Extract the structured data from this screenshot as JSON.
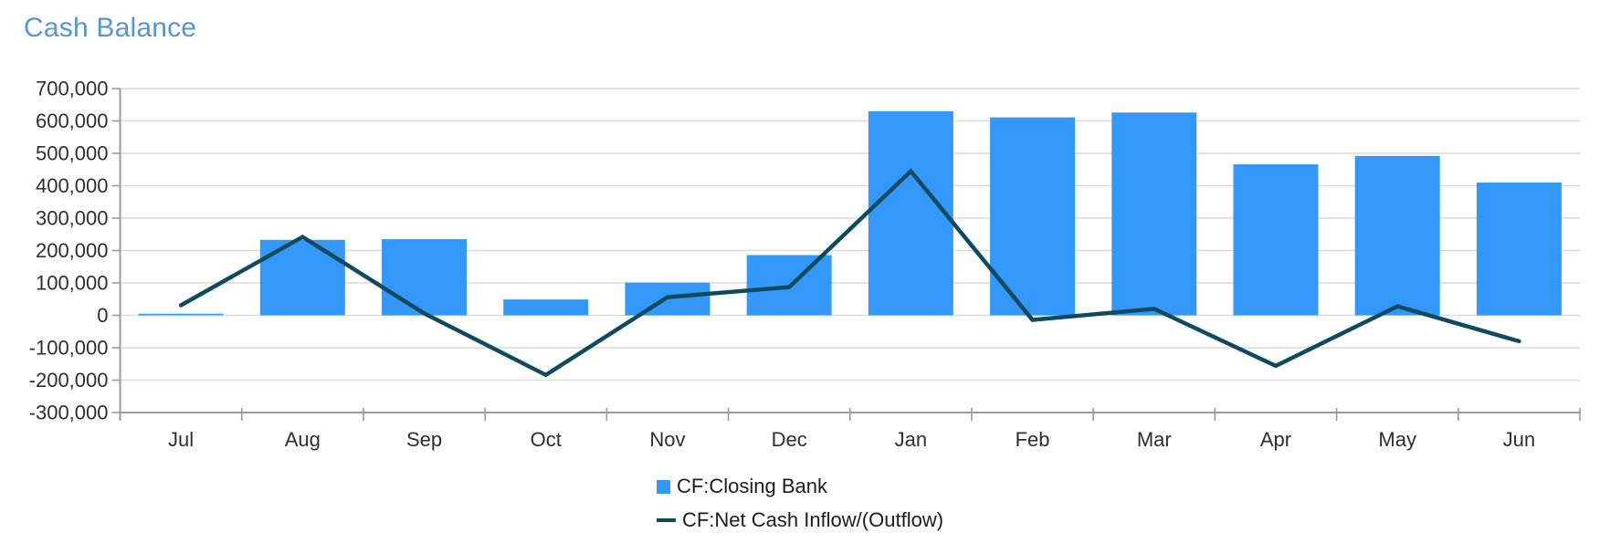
{
  "title": {
    "text": "Cash Balance",
    "color": "#5596D2"
  },
  "colors": {
    "bar": "#3498FA",
    "line": "#0F4B5C",
    "grid": "#DADADA",
    "axis": "#9B9B9B",
    "tick_text": "#2E2E2E"
  },
  "legend": {
    "items": [
      {
        "label": "CF:Closing Bank",
        "marker": "square",
        "color": "#3498FA"
      },
      {
        "label": "CF:Net Cash Inflow/(Outflow)",
        "marker": "line",
        "color": "#0F4B5C"
      }
    ],
    "position": "bottom"
  },
  "chart_data": {
    "type": "combo",
    "title": "Cash Balance",
    "categories": [
      "Jul",
      "Aug",
      "Sep",
      "Oct",
      "Nov",
      "Dec",
      "Jan",
      "Feb",
      "Mar",
      "Apr",
      "May",
      "Jun"
    ],
    "series": [
      {
        "name": "CF:Closing Bank",
        "type": "bar",
        "color": "#3498FA",
        "values": [
          5000,
          233000,
          235000,
          49000,
          101000,
          186000,
          630000,
          611000,
          626000,
          466000,
          492000,
          410000
        ]
      },
      {
        "name": "CF:Net Cash Inflow/(Outflow)",
        "type": "line",
        "color": "#0F4B5C",
        "values": [
          31000,
          242000,
          6000,
          -184000,
          56000,
          87000,
          445000,
          -14000,
          20000,
          -156000,
          28000,
          -80000
        ]
      }
    ],
    "xlabel": "",
    "ylabel": "",
    "ylim": [
      -300000,
      700000
    ],
    "ytick_step": 100000,
    "y_tick_values": [
      700000,
      600000,
      500000,
      400000,
      300000,
      200000,
      100000,
      0,
      -100000,
      -200000,
      -300000
    ],
    "y_tick_labels": [
      "700,000",
      "600,000",
      "500,000",
      "400,000",
      "300,000",
      "200,000",
      "100,000",
      "0",
      "-100,000",
      "-200,000",
      "-300,000"
    ],
    "grid": true,
    "legend_position": "bottom"
  }
}
